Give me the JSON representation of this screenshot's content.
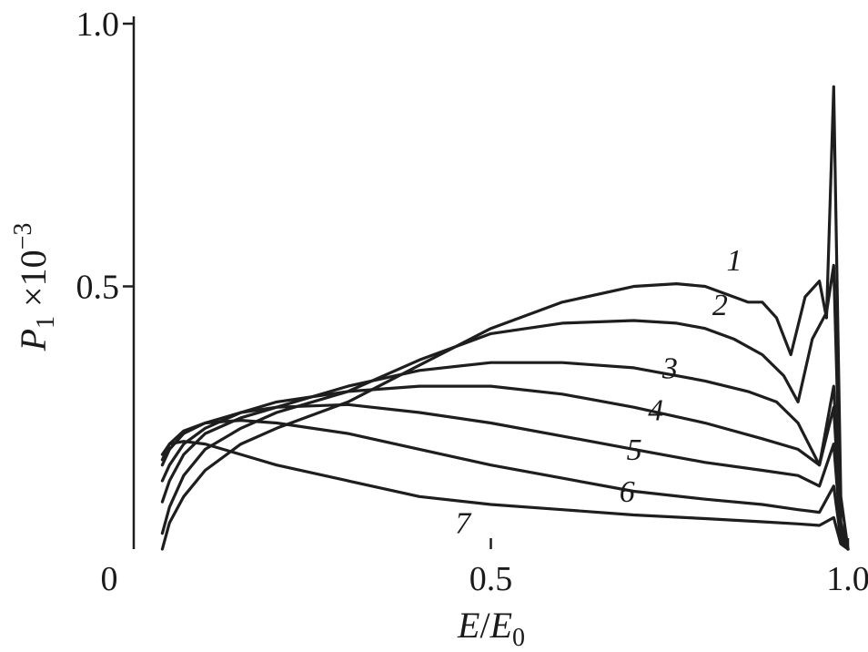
{
  "chart_data": {
    "type": "line",
    "title": "",
    "xlabel": {
      "var": "E",
      "sep": "/",
      "den": "E",
      "den_sub": "0"
    },
    "ylabel": {
      "var": "P",
      "sub": "1",
      "mult": " ×10",
      "exp": "−3"
    },
    "xlim": [
      0,
      1.0
    ],
    "ylim": [
      0,
      1.0
    ],
    "x_ticks": [
      {
        "value": 0,
        "label": "0"
      },
      {
        "value": 0.5,
        "label": "0.5"
      },
      {
        "value": 1.0,
        "label": "1.0"
      }
    ],
    "y_ticks": [
      {
        "value": 0.5,
        "label": "0.5"
      },
      {
        "value": 1.0,
        "label": "1.0"
      }
    ],
    "grid": false,
    "series": [
      {
        "name": "1",
        "x": [
          0.04,
          0.05,
          0.07,
          0.1,
          0.15,
          0.2,
          0.3,
          0.4,
          0.5,
          0.6,
          0.7,
          0.76,
          0.8,
          0.84,
          0.86,
          0.88,
          0.9,
          0.92,
          0.94,
          0.96,
          0.97,
          0.98,
          0.99,
          1.0
        ],
        "y": [
          0.0,
          0.05,
          0.1,
          0.15,
          0.2,
          0.23,
          0.28,
          0.35,
          0.42,
          0.47,
          0.5,
          0.505,
          0.5,
          0.48,
          0.47,
          0.47,
          0.44,
          0.37,
          0.48,
          0.51,
          0.44,
          0.88,
          0.1,
          0.0
        ]
      },
      {
        "name": "2",
        "x": [
          0.04,
          0.05,
          0.07,
          0.1,
          0.15,
          0.2,
          0.3,
          0.4,
          0.5,
          0.6,
          0.7,
          0.76,
          0.8,
          0.84,
          0.88,
          0.91,
          0.93,
          0.95,
          0.97,
          0.98,
          0.99,
          1.0
        ],
        "y": [
          0.03,
          0.08,
          0.14,
          0.19,
          0.23,
          0.26,
          0.3,
          0.36,
          0.41,
          0.43,
          0.435,
          0.43,
          0.42,
          0.4,
          0.37,
          0.33,
          0.28,
          0.4,
          0.45,
          0.54,
          0.05,
          0.0
        ]
      },
      {
        "name": "3",
        "x": [
          0.04,
          0.05,
          0.07,
          0.1,
          0.15,
          0.2,
          0.3,
          0.4,
          0.5,
          0.6,
          0.7,
          0.8,
          0.86,
          0.9,
          0.93,
          0.96,
          0.98,
          0.99,
          1.0
        ],
        "y": [
          0.09,
          0.13,
          0.18,
          0.22,
          0.25,
          0.27,
          0.31,
          0.34,
          0.355,
          0.355,
          0.345,
          0.32,
          0.3,
          0.28,
          0.24,
          0.16,
          0.31,
          0.05,
          0.0
        ]
      },
      {
        "name": "4",
        "x": [
          0.04,
          0.05,
          0.07,
          0.1,
          0.15,
          0.2,
          0.3,
          0.4,
          0.5,
          0.6,
          0.7,
          0.8,
          0.88,
          0.93,
          0.96,
          0.98,
          0.99,
          1.0
        ],
        "y": [
          0.13,
          0.16,
          0.2,
          0.23,
          0.26,
          0.28,
          0.3,
          0.31,
          0.31,
          0.295,
          0.27,
          0.24,
          0.21,
          0.19,
          0.16,
          0.27,
          0.04,
          0.0
        ]
      },
      {
        "name": "5",
        "x": [
          0.04,
          0.05,
          0.07,
          0.1,
          0.15,
          0.2,
          0.3,
          0.4,
          0.5,
          0.6,
          0.7,
          0.8,
          0.88,
          0.93,
          0.96,
          0.98,
          0.99,
          1.0
        ],
        "y": [
          0.16,
          0.19,
          0.22,
          0.24,
          0.26,
          0.27,
          0.275,
          0.26,
          0.24,
          0.215,
          0.19,
          0.165,
          0.15,
          0.14,
          0.12,
          0.2,
          0.03,
          0.0
        ]
      },
      {
        "name": "6",
        "x": [
          0.04,
          0.05,
          0.07,
          0.1,
          0.15,
          0.2,
          0.3,
          0.4,
          0.5,
          0.6,
          0.7,
          0.8,
          0.88,
          0.93,
          0.96,
          0.98,
          0.99,
          1.0
        ],
        "y": [
          0.17,
          0.2,
          0.225,
          0.24,
          0.245,
          0.24,
          0.22,
          0.19,
          0.16,
          0.135,
          0.11,
          0.095,
          0.085,
          0.075,
          0.07,
          0.12,
          0.02,
          0.0
        ]
      },
      {
        "name": "7",
        "x": [
          0.04,
          0.05,
          0.07,
          0.1,
          0.15,
          0.2,
          0.3,
          0.4,
          0.5,
          0.6,
          0.7,
          0.8,
          0.88,
          0.93,
          0.96,
          0.98,
          0.99,
          1.0
        ],
        "y": [
          0.18,
          0.2,
          0.205,
          0.2,
          0.18,
          0.16,
          0.13,
          0.1,
          0.085,
          0.075,
          0.065,
          0.058,
          0.052,
          0.048,
          0.045,
          0.06,
          0.01,
          0.0
        ]
      }
    ]
  }
}
